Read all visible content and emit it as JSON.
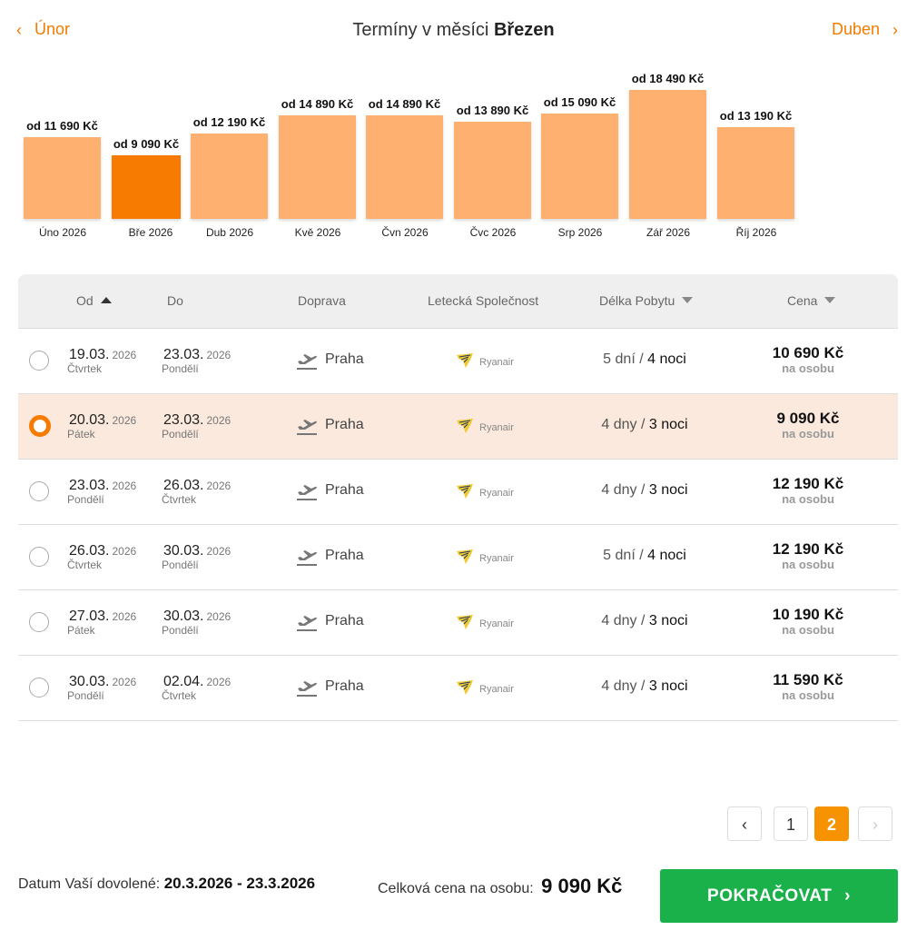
{
  "nav": {
    "prev_label": "Únor",
    "next_label": "Duben",
    "title_prefix": "Termíny v měsíci",
    "title_month": "Březen"
  },
  "chart_data": {
    "type": "bar",
    "categories": [
      "Úno 2026",
      "Bře 2026",
      "Dub 2026",
      "Kvě 2026",
      "Čvn 2026",
      "Čvc 2026",
      "Srp 2026",
      "Zář 2026",
      "Říj 2026"
    ],
    "values": [
      11690,
      9090,
      12190,
      14890,
      14890,
      13890,
      15090,
      18490,
      13190
    ],
    "labels": [
      "od 11 690 Kč",
      "od 9 090 Kč",
      "od 12 190 Kč",
      "od 14 890 Kč",
      "od 14 890 Kč",
      "od 13 890 Kč",
      "od 15 090 Kč",
      "od 18 490 Kč",
      "od 13 190 Kč"
    ],
    "selected_index": 1,
    "bar_color": "#fdb070",
    "selected_color": "#f77b00"
  },
  "table": {
    "headers": {
      "od": "Od",
      "do": "Do",
      "doprava": "Doprava",
      "letecka": "Letecká Společnost",
      "delka": "Délka Pobytu",
      "cena": "Cena"
    },
    "rows": [
      {
        "from_dm": "19.03.",
        "from_yr": "2026",
        "from_day": "Čtvrtek",
        "to_dm": "23.03.",
        "to_yr": "2026",
        "to_day": "Pondělí",
        "city": "Praha",
        "airline": "Ryanair",
        "days": "5 dní",
        "nights": "4 noci",
        "price": "10 690 Kč",
        "per": "na osobu",
        "selected": false
      },
      {
        "from_dm": "20.03.",
        "from_yr": "2026",
        "from_day": "Pátek",
        "to_dm": "23.03.",
        "to_yr": "2026",
        "to_day": "Pondělí",
        "city": "Praha",
        "airline": "Ryanair",
        "days": "4 dny",
        "nights": "3 noci",
        "price": "9 090 Kč",
        "per": "na osobu",
        "selected": true
      },
      {
        "from_dm": "23.03.",
        "from_yr": "2026",
        "from_day": "Pondělí",
        "to_dm": "26.03.",
        "to_yr": "2026",
        "to_day": "Čtvrtek",
        "city": "Praha",
        "airline": "Ryanair",
        "days": "4 dny",
        "nights": "3 noci",
        "price": "12 190 Kč",
        "per": "na osobu",
        "selected": false
      },
      {
        "from_dm": "26.03.",
        "from_yr": "2026",
        "from_day": "Čtvrtek",
        "to_dm": "30.03.",
        "to_yr": "2026",
        "to_day": "Pondělí",
        "city": "Praha",
        "airline": "Ryanair",
        "days": "5 dní",
        "nights": "4 noci",
        "price": "12 190 Kč",
        "per": "na osobu",
        "selected": false
      },
      {
        "from_dm": "27.03.",
        "from_yr": "2026",
        "from_day": "Pátek",
        "to_dm": "30.03.",
        "to_yr": "2026",
        "to_day": "Pondělí",
        "city": "Praha",
        "airline": "Ryanair",
        "days": "4 dny",
        "nights": "3 noci",
        "price": "10 190 Kč",
        "per": "na osobu",
        "selected": false
      },
      {
        "from_dm": "30.03.",
        "from_yr": "2026",
        "from_day": "Pondělí",
        "to_dm": "02.04.",
        "to_yr": "2026",
        "to_day": "Čtvrtek",
        "city": "Praha",
        "airline": "Ryanair",
        "days": "4 dny",
        "nights": "3 noci",
        "price": "11 590 Kč",
        "per": "na osobu",
        "selected": false
      }
    ]
  },
  "pagination": {
    "pages": [
      "1",
      "2"
    ],
    "current": "2"
  },
  "footer": {
    "dates_label": "Datum Vaší dovolené:",
    "dates_value": "20.3.2026 - 23.3.2026",
    "total_label": "Celková cena na osobu:",
    "total_value": "9 090 Kč",
    "cta_label": "POKRAČOVAT"
  },
  "colors": {
    "accent": "#f07c00",
    "cta": "#1ab04a",
    "selected_row": "#fae9dc"
  },
  "icons": {
    "prev": "chevron-left-icon",
    "next": "chevron-right-icon",
    "transport": "plane-departure-icon",
    "airline": "ryanair-logo-icon"
  }
}
